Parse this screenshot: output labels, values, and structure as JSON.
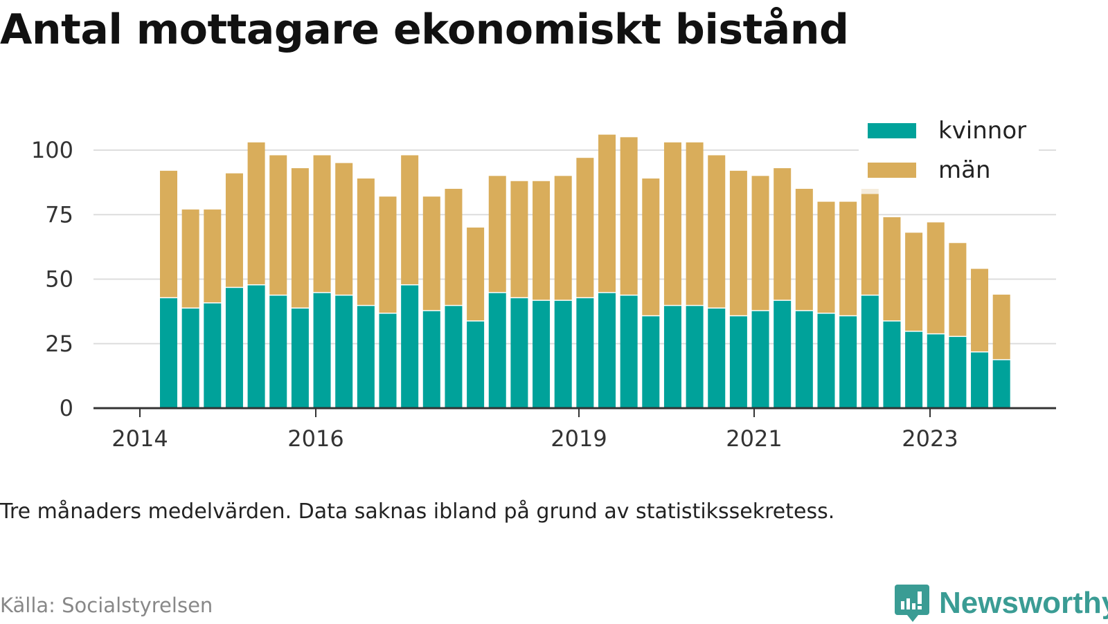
{
  "title": "Antal mottagare ekonomiskt bistånd",
  "note": "Tre månaders medelvärden. Data saknas ibland på grund av statistikssekretess.",
  "source": "Källa: Socialstyrelsen",
  "brand": {
    "name": "Newsworthy",
    "icon": "bar-chart-speech-bubble-icon"
  },
  "colors": {
    "kvinnor": "#00a29a",
    "man": "#d9ad5b",
    "grid": "#dddddd",
    "axis": "#333333",
    "highlight": "#f5ecdc"
  },
  "chart_data": {
    "type": "bar",
    "stacked": true,
    "x_tick_labels": [
      "2014",
      "2016",
      "2019",
      "2021",
      "2023"
    ],
    "y_ticks": [
      0,
      25,
      50,
      75,
      100
    ],
    "ylim": [
      0,
      110
    ],
    "grid": true,
    "legend_position": "top-right",
    "series": [
      {
        "name": "kvinnor",
        "values": [
          43,
          39,
          41,
          47,
          48,
          44,
          39,
          45,
          44,
          40,
          37,
          48,
          38,
          40,
          34,
          45,
          43,
          42,
          42,
          43,
          45,
          44,
          36,
          40,
          40,
          39,
          36,
          38,
          42,
          38,
          37,
          36,
          44,
          34,
          30,
          29,
          28,
          22,
          19
        ]
      },
      {
        "name": "män",
        "values": [
          49,
          38,
          36,
          44,
          55,
          54,
          54,
          53,
          51,
          49,
          45,
          50,
          44,
          45,
          36,
          45,
          45,
          46,
          48,
          54,
          61,
          61,
          53,
          63,
          63,
          59,
          56,
          52,
          51,
          47,
          43,
          44,
          39,
          40,
          38,
          43,
          36,
          32,
          25
        ]
      }
    ],
    "highlighted_bar_index": 32,
    "highlighted_bar_extra_value": 6
  }
}
